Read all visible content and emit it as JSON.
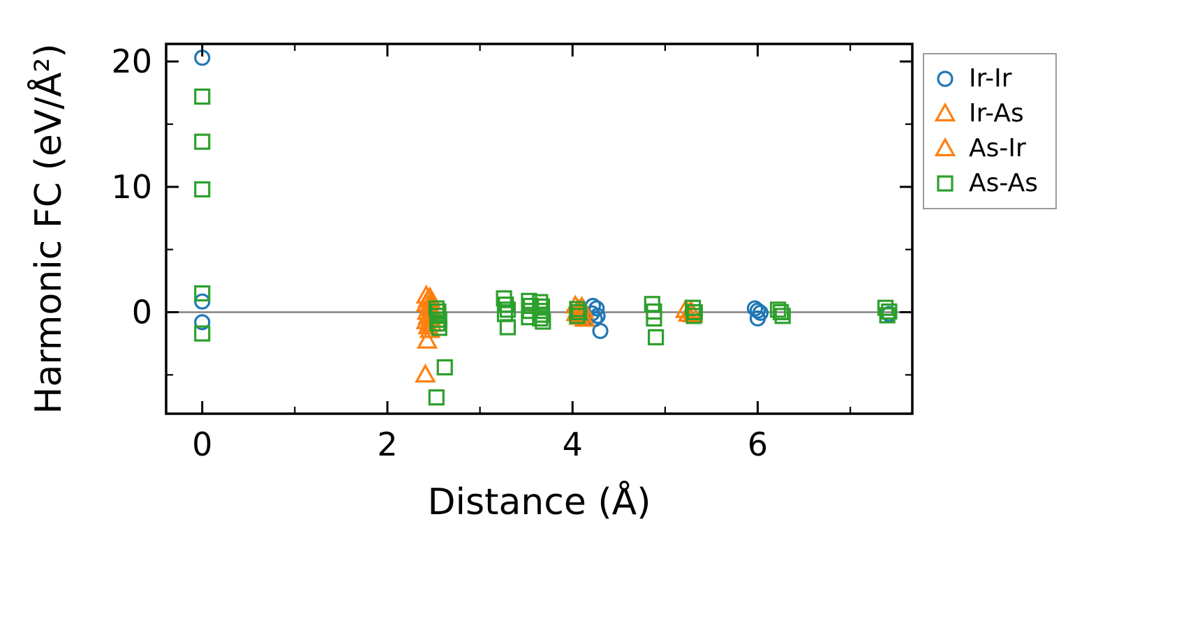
{
  "chart_data": {
    "type": "scatter",
    "title": "",
    "xlabel": "Distance (Å)",
    "ylabel": "Harmonic FC (eV/Å²)",
    "xlim": [
      -0.39,
      7.67
    ],
    "ylim": [
      -8.1,
      21.4
    ],
    "xticks": [
      0,
      2,
      4,
      6
    ],
    "yticks": [
      0,
      10,
      20
    ],
    "x_minor_ticks": [
      1,
      3,
      5,
      7
    ],
    "y_minor_ticks": [
      -5,
      5,
      15
    ],
    "zero_line": 0,
    "grid": false,
    "legend_position": "outside-right-top",
    "colors": {
      "blue": "#1f77b4",
      "orange": "#ff7f0e",
      "green": "#2ca02c",
      "zero_line": "#808080",
      "frame": "#000000"
    },
    "series": [
      {
        "name": "Ir-Ir",
        "marker": "circle",
        "color": "#1f77b4",
        "points": [
          [
            0,
            20.3
          ],
          [
            0,
            0.85
          ],
          [
            0,
            -0.8
          ],
          [
            4.22,
            0.5
          ],
          [
            4.26,
            0.3
          ],
          [
            4.21,
            -0.1
          ],
          [
            4.27,
            -0.3
          ],
          [
            4.24,
            -0.55
          ],
          [
            4.3,
            -1.5
          ],
          [
            5.97,
            0.3
          ],
          [
            6.0,
            0.12
          ],
          [
            6.03,
            -0.05
          ],
          [
            6.0,
            -0.5
          ],
          [
            7.42,
            -0.15
          ]
        ]
      },
      {
        "name": "Ir-As",
        "marker": "triangle",
        "color": "#ff7f0e",
        "points": [
          [
            2.42,
            1.3
          ],
          [
            2.44,
            1.0
          ],
          [
            2.42,
            0.65
          ],
          [
            2.45,
            0.3
          ],
          [
            2.43,
            0.0
          ],
          [
            2.44,
            -0.35
          ],
          [
            2.42,
            -0.75
          ],
          [
            2.44,
            -1.15
          ],
          [
            2.43,
            -2.3
          ],
          [
            2.41,
            -5.0
          ],
          [
            4.03,
            0.5
          ],
          [
            4.06,
            0.2
          ],
          [
            4.04,
            -0.1
          ],
          [
            4.07,
            -0.4
          ],
          [
            5.22,
            0.15
          ],
          [
            5.25,
            -0.15
          ]
        ]
      },
      {
        "name": "As-Ir",
        "marker": "triangle",
        "color": "#ff7f0e",
        "points": [
          [
            2.46,
            1.15
          ],
          [
            2.47,
            0.85
          ],
          [
            2.46,
            0.45
          ],
          [
            2.48,
            0.1
          ],
          [
            2.46,
            -0.2
          ],
          [
            2.47,
            -0.55
          ],
          [
            2.48,
            -0.95
          ],
          [
            2.46,
            -1.45
          ],
          [
            4.1,
            0.4
          ],
          [
            4.12,
            0.1
          ],
          [
            4.1,
            -0.25
          ],
          [
            4.13,
            -0.55
          ],
          [
            5.28,
            0.1
          ],
          [
            5.3,
            -0.2
          ]
        ]
      },
      {
        "name": "As-As",
        "marker": "square",
        "color": "#2ca02c",
        "points": [
          [
            0,
            17.2
          ],
          [
            0,
            13.6
          ],
          [
            0,
            9.8
          ],
          [
            0,
            1.5
          ],
          [
            0,
            -1.7
          ],
          [
            2.53,
            0.3
          ],
          [
            2.55,
            0.05
          ],
          [
            2.54,
            -0.3
          ],
          [
            2.56,
            -0.6
          ],
          [
            2.54,
            -0.9
          ],
          [
            2.56,
            -1.25
          ],
          [
            2.62,
            -4.4
          ],
          [
            2.53,
            -6.8
          ],
          [
            3.26,
            1.1
          ],
          [
            3.28,
            0.6
          ],
          [
            3.3,
            0.2
          ],
          [
            3.27,
            -0.15
          ],
          [
            3.3,
            -1.2
          ],
          [
            3.53,
            0.9
          ],
          [
            3.55,
            0.5
          ],
          [
            3.54,
            0.1
          ],
          [
            3.53,
            -0.4
          ],
          [
            3.65,
            0.8
          ],
          [
            3.67,
            0.45
          ],
          [
            3.66,
            0.1
          ],
          [
            3.67,
            -0.2
          ],
          [
            3.65,
            -0.5
          ],
          [
            3.68,
            -0.75
          ],
          [
            4.05,
            0.25
          ],
          [
            4.07,
            0.0
          ],
          [
            4.05,
            -0.3
          ],
          [
            4.86,
            0.65
          ],
          [
            4.88,
            0.05
          ],
          [
            4.88,
            -0.5
          ],
          [
            4.9,
            -2.0
          ],
          [
            5.3,
            0.35
          ],
          [
            5.32,
            0.0
          ],
          [
            5.31,
            -0.3
          ],
          [
            6.22,
            0.2
          ],
          [
            6.25,
            0.0
          ],
          [
            6.27,
            -0.3
          ],
          [
            7.38,
            0.35
          ],
          [
            7.42,
            0.05
          ],
          [
            7.4,
            -0.25
          ]
        ]
      }
    ]
  }
}
